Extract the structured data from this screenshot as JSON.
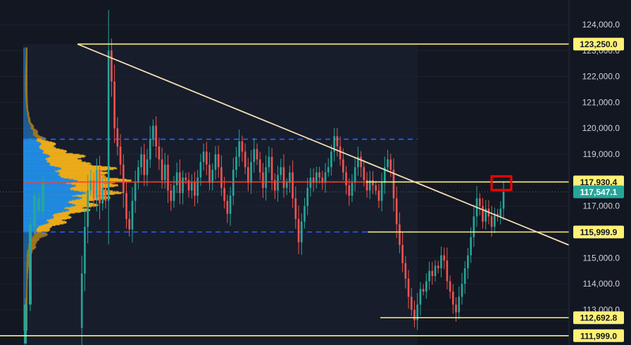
{
  "colors": {
    "background": "#131722",
    "grid": "#1e2230",
    "bull": "#26a69a",
    "bear": "#ef5350",
    "support_line": "#fff176",
    "trendline": "#f5deb3",
    "poc_line": "#ff3b30",
    "value_area_line": "#2962ff",
    "profile_up": "#2196f3",
    "profile_down": "#f5b21a",
    "last_price_label": "#26a69a",
    "highlight_box": "#ff0000"
  },
  "chart_data": {
    "type": "candlestick",
    "title": "",
    "xlabel": "",
    "ylabel": "",
    "ylim": [
      111640,
      124950
    ],
    "y_ticks": [
      112000,
      113000,
      114000,
      115000,
      116000,
      117000,
      118000,
      119000,
      120000,
      121000,
      122000,
      123000,
      124000
    ],
    "tick_labels": [
      "112,000.0",
      "113,000.0",
      "114,000.0",
      "115,000.0",
      "116,000.0",
      "117,000.0",
      "118,000.0",
      "119,000.0",
      "120,000.0",
      "121,000.0",
      "122,000.0",
      "123,000.0",
      "124,000.0"
    ],
    "grid": false,
    "horizontal_levels": [
      {
        "price": 123250.0,
        "label": "123,250.0"
      },
      {
        "price": 117930.4,
        "label": "117,930.4"
      },
      {
        "price": 115999.9,
        "label": "115,999.9"
      },
      {
        "price": 112692.8,
        "label": "112,692.8"
      },
      {
        "price": 111999.0,
        "label": "111,999.0"
      }
    ],
    "last_price": {
      "price": 117547.1,
      "label": "117,547.1"
    },
    "trendline": {
      "from_index": 0,
      "from_price": 123250,
      "to_price_at_right_edge": 115450
    },
    "volume_profile": {
      "poc": 117930,
      "value_area_high": 119580,
      "value_area_low": 116000
    },
    "candles_close": [
      112300,
      114400,
      116200,
      117600,
      118000,
      117300,
      118400,
      117100,
      117700,
      117200,
      123000,
      121800,
      120000,
      119300,
      118600,
      117500,
      116500,
      116100,
      117200,
      117900,
      118500,
      119000,
      118200,
      118800,
      119600,
      120100,
      119300,
      118800,
      118000,
      118600,
      117600,
      117200,
      117800,
      118300,
      117500,
      118100,
      118000,
      117600,
      117900,
      117400,
      118100,
      118700,
      119100,
      118600,
      117900,
      118400,
      119000,
      118500,
      117700,
      117200,
      116700,
      117400,
      118400,
      118900,
      119500,
      119100,
      118500,
      117900,
      118700,
      119200,
      118800,
      118300,
      117700,
      118500,
      118900,
      118000,
      117600,
      118200,
      118500,
      117700,
      117900,
      118300,
      117300,
      116500,
      115600,
      116400,
      117000,
      117700,
      118100,
      117900,
      118300,
      118100,
      117900,
      118300,
      118500,
      119100,
      119700,
      119300,
      118800,
      118300,
      117800,
      117400,
      117900,
      118500,
      118900,
      118500,
      118000,
      117600,
      118000,
      117800,
      117600,
      117200,
      117900,
      118500,
      118800,
      118400,
      117300,
      116300,
      115500,
      114800,
      114200,
      113500,
      113000,
      112600,
      113200,
      113800,
      113700,
      114100,
      114500,
      114300,
      114700,
      114600,
      115100,
      114900,
      114100,
      113700,
      113200,
      112900,
      113500,
      114000,
      114600,
      115100,
      115800,
      116600,
      117300,
      117000,
      116400,
      116900,
      116600,
      116200,
      116700,
      116600,
      116900,
      117547.1
    ]
  }
}
